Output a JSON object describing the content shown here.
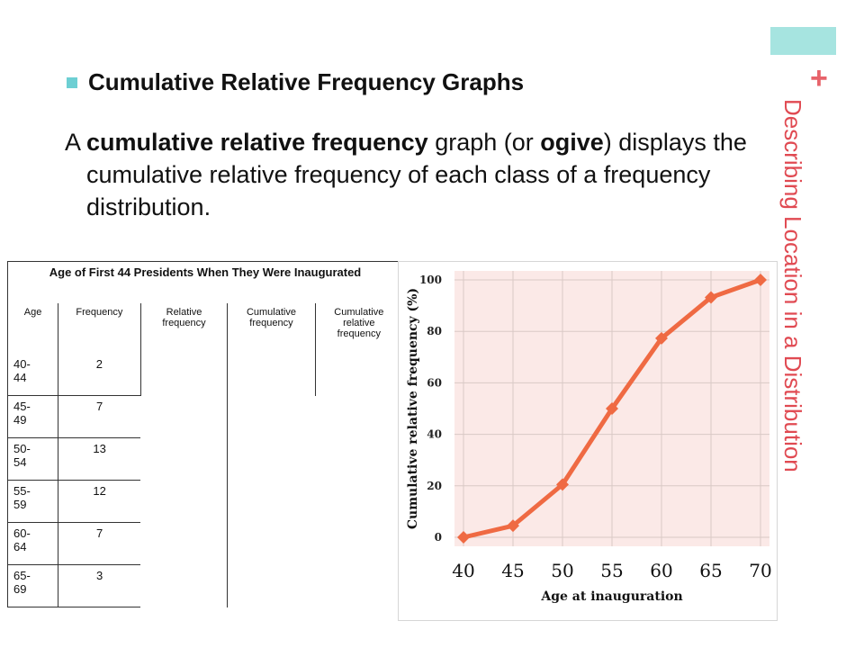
{
  "slide": {
    "heading": "Cumulative Relative Frequency Graphs",
    "para_lead": "A ",
    "para_term": "cumulative relative frequency",
    "para_mid": " graph (or ",
    "para_term2": "ogive",
    "para_tail": ") displays the cumulative relative frequency of each class of a frequency distribution.",
    "side_title": "Describing Location in a Distribution",
    "plus": "+"
  },
  "table": {
    "caption": "Age of First 44 Presidents When They Were Inaugurated",
    "headers": [
      "Age",
      "Frequency",
      "Relative frequency",
      "Cumulative frequency",
      "Cumulative relative frequency"
    ],
    "rows": [
      {
        "age": "40-\n44",
        "frequency": "2"
      },
      {
        "age": "45-\n49",
        "frequency": "7"
      },
      {
        "age": "50-\n54",
        "frequency": "13"
      },
      {
        "age": "55-\n59",
        "frequency": "12"
      },
      {
        "age": "60-\n64",
        "frequency": "7"
      },
      {
        "age": "65-\n69",
        "frequency": "3"
      }
    ]
  },
  "chart_data": {
    "type": "line",
    "title": "",
    "xlabel": "Age at inauguration",
    "ylabel": "Cumulative relative frequency (%)",
    "x": [
      40,
      45,
      50,
      55,
      60,
      65,
      70
    ],
    "values": [
      0,
      4.5,
      20.5,
      50,
      77.3,
      93.2,
      100
    ],
    "xticks": [
      40,
      45,
      50,
      55,
      60,
      65,
      70
    ],
    "yticks": [
      0,
      20,
      40,
      60,
      80,
      100
    ],
    "xlim": [
      40,
      70
    ],
    "ylim": [
      0,
      100
    ],
    "grid": true,
    "colors": {
      "line": "#ef6a43",
      "marker": "#ef6a43",
      "plot_bg": "#fbe9e7",
      "grid": "#d9c9c6"
    }
  }
}
